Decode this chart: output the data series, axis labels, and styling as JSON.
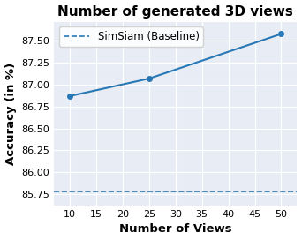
{
  "title": "Number of generated 3D views",
  "xlabel": "Number of Views",
  "ylabel": "Accuracy (in %)",
  "x_data": [
    10,
    25,
    50
  ],
  "y_data": [
    86.87,
    87.07,
    87.58
  ],
  "baseline_value": 85.78,
  "baseline_label": "SimSiam (Baseline)",
  "line_color": "#2878b5",
  "baseline_color": "#2878b5",
  "marker": "o",
  "marker_size": 4,
  "xlim": [
    7,
    53
  ],
  "ylim": [
    85.62,
    87.72
  ],
  "xticks": [
    10,
    15,
    20,
    25,
    30,
    35,
    40,
    45,
    50
  ],
  "yticks": [
    85.75,
    86.0,
    86.25,
    86.5,
    86.75,
    87.0,
    87.25,
    87.5
  ],
  "bg_color": "#e8ecf5",
  "grid_color": "white",
  "legend_loc": "upper left",
  "title_fontsize": 11,
  "label_fontsize": 9.5,
  "tick_fontsize": 8,
  "legend_fontsize": 8.5
}
